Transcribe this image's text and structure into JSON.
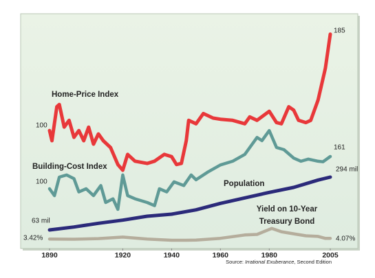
{
  "chart_data": {
    "type": "line",
    "xlim": [
      1890,
      2005
    ],
    "xticks": [
      1890,
      1920,
      1940,
      1960,
      1980,
      2005
    ],
    "grid": false,
    "source": [
      "Source: ",
      "Irrational Exuberance",
      ", Second Edition"
    ],
    "series": [
      {
        "name": [
          "Home-Price Index"
        ],
        "color": "#e8383a",
        "ylim": [
          -4,
          203
        ],
        "x": [
          1890,
          1891,
          1893,
          1894,
          1896,
          1898,
          1900,
          1902,
          1904,
          1906,
          1908,
          1910,
          1912,
          1915,
          1918,
          1920,
          1922,
          1925,
          1930,
          1933,
          1937,
          1940,
          1942,
          1944,
          1946,
          1947,
          1950,
          1953,
          1957,
          1960,
          1965,
          1970,
          1972,
          1975,
          1980,
          1983,
          1985,
          1988,
          1990,
          1992,
          1995,
          1997,
          2000,
          2003,
          2005
        ],
        "values": [
          100,
          91,
          121,
          123,
          103,
          109,
          94,
          100,
          91,
          103,
          88,
          97,
          91,
          85,
          70,
          65,
          79,
          73,
          71,
          73,
          79,
          77,
          70,
          71,
          91,
          109,
          106,
          115,
          111,
          110,
          109,
          106,
          112,
          109,
          117,
          107,
          106,
          121,
          118,
          109,
          107,
          109,
          127,
          155,
          185
        ],
        "value_labels": [
          "100",
          null,
          null,
          null,
          null,
          null,
          null,
          null,
          null,
          null,
          null,
          null,
          null,
          null,
          null,
          null,
          null,
          null,
          null,
          null,
          null,
          null,
          null,
          null,
          null,
          null,
          null,
          null,
          null,
          null,
          null,
          null,
          null,
          null,
          null,
          null,
          null,
          null,
          null,
          null,
          null,
          null,
          null,
          null,
          "185"
        ]
      },
      {
        "name": [
          "Building-Cost Index"
        ],
        "color": "#5f9a96",
        "ylim": [
          -13,
          431
        ],
        "x": [
          1890,
          1892,
          1894,
          1897,
          1900,
          1902,
          1905,
          1908,
          1911,
          1913,
          1916,
          1918,
          1920,
          1922,
          1925,
          1930,
          1933,
          1935,
          1938,
          1941,
          1945,
          1948,
          1950,
          1955,
          1960,
          1965,
          1970,
          1975,
          1977,
          1980,
          1983,
          1986,
          1990,
          1993,
          1996,
          2000,
          2002,
          2005
        ],
        "values": [
          100,
          87,
          122,
          126,
          119,
          94,
          100,
          87,
          106,
          74,
          81,
          61,
          126,
          87,
          81,
          74,
          68,
          100,
          94,
          113,
          106,
          126,
          117,
          132,
          145,
          152,
          165,
          197,
          191,
          210,
          178,
          174,
          158,
          152,
          156,
          152,
          151,
          161
        ],
        "value_labels": [
          "100",
          null,
          null,
          null,
          null,
          null,
          null,
          null,
          null,
          null,
          null,
          null,
          null,
          null,
          null,
          null,
          null,
          null,
          null,
          null,
          null,
          null,
          null,
          null,
          null,
          null,
          null,
          null,
          null,
          null,
          null,
          null,
          null,
          null,
          null,
          null,
          null,
          "161"
        ]
      },
      {
        "name": [
          "Population"
        ],
        "color": "#2b2a7a",
        "ylim": [
          -18,
          1008
        ],
        "x": [
          1890,
          1900,
          1910,
          1920,
          1930,
          1940,
          1950,
          1960,
          1970,
          1980,
          1990,
          2000,
          2005
        ],
        "values": [
          63,
          76,
          92,
          106,
          123,
          132,
          151,
          179,
          203,
          227,
          249,
          281,
          294
        ],
        "value_labels": [
          "63 mil",
          null,
          null,
          null,
          null,
          null,
          null,
          null,
          null,
          null,
          null,
          null,
          "294 mil"
        ]
      },
      {
        "name": [
          "Yield on 10-Year",
          "Treasury Bond"
        ],
        "color": "#b5ad9c",
        "ylim": [
          -6,
          227
        ],
        "x": [
          1890,
          1900,
          1910,
          1920,
          1930,
          1940,
          1946,
          1950,
          1960,
          1970,
          1975,
          1981,
          1985,
          1990,
          1995,
          2000,
          2003,
          2005
        ],
        "values": [
          3.42,
          3.2,
          3.8,
          5.3,
          3.3,
          2.2,
          2.2,
          2.3,
          4.1,
          7.4,
          8,
          13.9,
          10.6,
          8.6,
          6.6,
          6.0,
          4.0,
          4.07
        ],
        "value_labels": [
          "3.42%",
          null,
          null,
          null,
          null,
          null,
          null,
          null,
          null,
          null,
          null,
          null,
          null,
          null,
          null,
          null,
          null,
          "4.07%"
        ]
      }
    ]
  }
}
